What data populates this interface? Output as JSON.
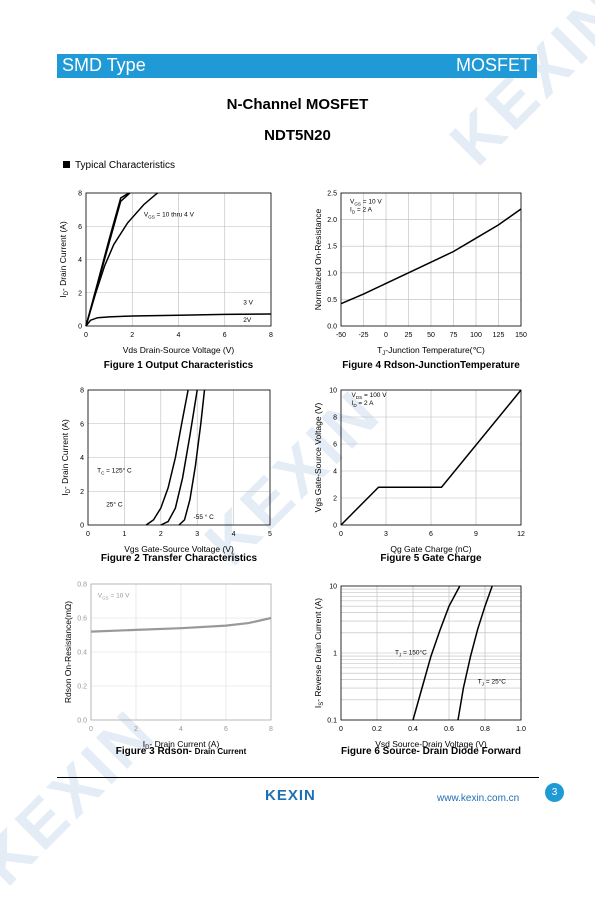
{
  "header": {
    "left": "SMD Type",
    "right": "MOSFET"
  },
  "title": "N-Channel MOSFET",
  "part_number": "NDT5N20",
  "section": "Typical Characteristics",
  "watermark": "KEXIN",
  "footer": {
    "logo": "KEXIN",
    "url": "www.kexin.com.cn",
    "page": "3"
  },
  "colors": {
    "banner": "#1f9ad6",
    "brand": "#1f6fb5",
    "watermark": "#e4ecf6"
  },
  "chart_data": [
    {
      "id": "fig1",
      "type": "line",
      "caption": "Figure 1 Output Characteristics",
      "xlabel": "Vds Drain-Source Voltage (V)",
      "ylabel": "I_D- Drain Current (A)",
      "xlim": [
        0,
        8
      ],
      "ylim": [
        0,
        8
      ],
      "xticks": [
        "0",
        "2",
        "4",
        "6",
        "8"
      ],
      "yticks": [
        "0",
        "2",
        "4",
        "6",
        "8"
      ],
      "grid": true,
      "annotations": [
        {
          "text": "V_GS = 10 thru 4 V",
          "x": 2.5,
          "y": 6.6
        },
        {
          "text": "3 V",
          "x": 6.8,
          "y": 1.3
        },
        {
          "text": "2V",
          "x": 6.8,
          "y": 0.25
        }
      ],
      "series": [
        {
          "values": [
            [
              0,
              0
            ],
            [
              0.5,
              2.5
            ],
            [
              1,
              5
            ],
            [
              1.5,
              7.5
            ],
            [
              1.9,
              8
            ]
          ]
        },
        {
          "values": [
            [
              0,
              0
            ],
            [
              0.5,
              2.6
            ],
            [
              1,
              5.2
            ],
            [
              1.5,
              7.7
            ],
            [
              1.85,
              8
            ]
          ]
        },
        {
          "values": [
            [
              0,
              0
            ],
            [
              0.4,
              1.9
            ],
            [
              0.8,
              3.6
            ],
            [
              1.2,
              4.9
            ],
            [
              1.8,
              6.2
            ],
            [
              2.5,
              7.3
            ],
            [
              3,
              7.9
            ],
            [
              3.1,
              8
            ]
          ]
        },
        {
          "values": [
            [
              0,
              0
            ],
            [
              0.2,
              0.35
            ],
            [
              0.5,
              0.5
            ],
            [
              1,
              0.55
            ],
            [
              2,
              0.6
            ],
            [
              4,
              0.65
            ],
            [
              6,
              0.7
            ],
            [
              8,
              0.72
            ]
          ]
        }
      ]
    },
    {
      "id": "fig4",
      "type": "line",
      "caption": "Figure 4 Rdson-JunctionTemperature",
      "xlabel": "T_J-Junction Temperature(℃)",
      "ylabel": "Normalized On-Resistance",
      "xlim": [
        -50,
        150
      ],
      "ylim": [
        0,
        2.5
      ],
      "xticks": [
        "-50",
        "-25",
        "0",
        "25",
        "50",
        "75",
        "100",
        "125",
        "150"
      ],
      "yticks": [
        "0.0",
        "0.5",
        "1.0",
        "1.5",
        "2.0",
        "2.5"
      ],
      "grid": true,
      "annotations": [
        {
          "text": "V_GS = 10 V",
          "x": -40,
          "y": 2.3
        },
        {
          "text": "I_D = 2 A",
          "x": -40,
          "y": 2.15
        }
      ],
      "series": [
        {
          "values": [
            [
              -50,
              0.42
            ],
            [
              -25,
              0.6
            ],
            [
              0,
              0.8
            ],
            [
              25,
              1.0
            ],
            [
              50,
              1.2
            ],
            [
              75,
              1.4
            ],
            [
              100,
              1.65
            ],
            [
              125,
              1.9
            ],
            [
              150,
              2.2
            ]
          ]
        }
      ]
    },
    {
      "id": "fig2",
      "type": "line",
      "caption": "Figure 2 Transfer Characteristics",
      "xlabel": "Vgs Gate-Source Voltage (V)",
      "ylabel": "I_D- Drain Current (A)",
      "xlim": [
        0,
        5
      ],
      "ylim": [
        0,
        8
      ],
      "xticks": [
        "0",
        "1",
        "2",
        "3",
        "4",
        "5"
      ],
      "yticks": [
        "0",
        "2",
        "4",
        "6",
        "8"
      ],
      "grid": true,
      "annotations": [
        {
          "text": "T_C = 125° C",
          "x": 0.25,
          "y": 3.1
        },
        {
          "text": "25° C",
          "x": 0.5,
          "y": 1.1
        },
        {
          "text": "-55 ° C",
          "x": 2.9,
          "y": 0.35
        }
      ],
      "series": [
        {
          "name": "125° C",
          "values": [
            [
              1.6,
              0
            ],
            [
              1.8,
              0.3
            ],
            [
              2,
              1
            ],
            [
              2.2,
              2.2
            ],
            [
              2.4,
              4
            ],
            [
              2.6,
              6.3
            ],
            [
              2.75,
              8
            ]
          ]
        },
        {
          "name": "25° C",
          "values": [
            [
              2.0,
              0
            ],
            [
              2.2,
              0.2
            ],
            [
              2.4,
              1
            ],
            [
              2.6,
              2.8
            ],
            [
              2.8,
              5.3
            ],
            [
              3.0,
              8
            ]
          ]
        },
        {
          "name": "-55 ° C",
          "values": [
            [
              2.5,
              0
            ],
            [
              2.65,
              0.3
            ],
            [
              2.8,
              1.5
            ],
            [
              2.95,
              3.5
            ],
            [
              3.1,
              6
            ],
            [
              3.2,
              8
            ]
          ]
        }
      ]
    },
    {
      "id": "fig5",
      "type": "line",
      "caption": "Figure 5 Gate Charge",
      "xlabel": "Qg Gate Charge (nC)",
      "ylabel": "Vgs Gate-Source Voltage (V)",
      "xlim": [
        0,
        12
      ],
      "ylim": [
        0,
        10
      ],
      "xticks": [
        "0",
        "3",
        "6",
        "9",
        "12"
      ],
      "yticks": [
        "0",
        "2",
        "4",
        "6",
        "8",
        "10"
      ],
      "grid": true,
      "annotations": [
        {
          "text": "V_DS = 100 V",
          "x": 0.7,
          "y": 9.5
        },
        {
          "text": "I_D = 2 A",
          "x": 0.7,
          "y": 8.9
        }
      ],
      "series": [
        {
          "values": [
            [
              0,
              0
            ],
            [
              2.5,
              2.8
            ],
            [
              6.7,
              2.8
            ],
            [
              12,
              10
            ]
          ]
        }
      ]
    },
    {
      "id": "fig3",
      "type": "line",
      "caption_main": "Figure 3 Rdson-",
      "caption_sub": "Drain Current",
      "xlabel": "I_D- Drain Current (A)",
      "ylabel": "Rdson On-Resistance(mΩ)",
      "xlim": [
        0,
        8
      ],
      "ylim": [
        0,
        0.8
      ],
      "xticks": [
        "0",
        "2",
        "4",
        "6",
        "8"
      ],
      "yticks": [
        "0.0",
        "0.2",
        "0.4",
        "0.6",
        "0.8"
      ],
      "grid": true,
      "annotations": [
        {
          "text": "V_GS = 10 V",
          "x": 0.3,
          "y": 0.72
        }
      ],
      "series": [
        {
          "values": [
            [
              0,
              0.52
            ],
            [
              2,
              0.53
            ],
            [
              4,
              0.54
            ],
            [
              6,
              0.555
            ],
            [
              7,
              0.57
            ],
            [
              8,
              0.6
            ]
          ]
        }
      ]
    },
    {
      "id": "fig6",
      "type": "line",
      "caption": "Figure 6 Source- Drain Diode Forward",
      "xlabel": "Vsd Source-Drain Voltage (V)",
      "ylabel": "I_S- Reverse Drain Current (A)",
      "xlim": [
        0,
        1.0
      ],
      "ylim": [
        0.1,
        10
      ],
      "yscale": "log",
      "xticks": [
        "0",
        "0.2",
        "0.4",
        "0.6",
        "0.8",
        "1.0"
      ],
      "yticks": [
        "0.1",
        "1",
        "10"
      ],
      "grid": true,
      "annotations": [
        {
          "text": "T_J = 150°C",
          "x": 0.3,
          "y": 0.95
        },
        {
          "text": "T_J = 25°C",
          "x": 0.76,
          "y": 0.35
        }
      ],
      "series": [
        {
          "name": "T_J = 150°C",
          "values": [
            [
              0.4,
              0.1
            ],
            [
              0.45,
              0.3
            ],
            [
              0.5,
              0.9
            ],
            [
              0.55,
              2.2
            ],
            [
              0.6,
              5
            ],
            [
              0.66,
              10
            ]
          ]
        },
        {
          "name": "T_J = 25°C",
          "values": [
            [
              0.65,
              0.1
            ],
            [
              0.68,
              0.3
            ],
            [
              0.72,
              0.9
            ],
            [
              0.76,
              2.3
            ],
            [
              0.8,
              5
            ],
            [
              0.84,
              10
            ]
          ]
        }
      ]
    }
  ]
}
